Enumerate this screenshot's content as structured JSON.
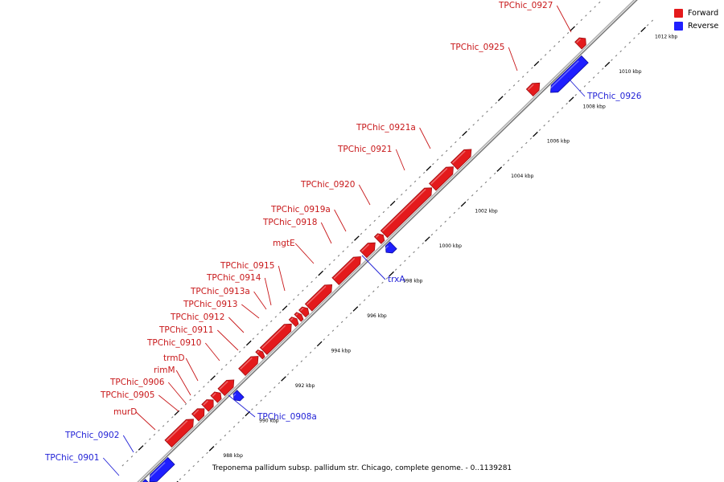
{
  "caption": "Treponema pallidum subsp. pallidum str. Chicago, complete genome. - 0..1139281",
  "legend": [
    {
      "label": "Forward",
      "color": "#e41a1c"
    },
    {
      "label": "Reverse",
      "color": "#1f1fff"
    }
  ],
  "colors": {
    "forward": "#e41a1c",
    "reverse": "#1f1fff",
    "axis": "#8c8c8c"
  },
  "scale": {
    "start_kbp": 986,
    "end_kbp": 1012,
    "major_kbp": 2,
    "unit": "kbp"
  },
  "ticks": [
    "988 kbp",
    "990 kbp",
    "992 kbp",
    "994 kbp",
    "996 kbp",
    "998 kbp",
    "1000 kbp",
    "1002 kbp",
    "1004 kbp",
    "1006 kbp",
    "1008 kbp",
    "1010 kbp",
    "1012 kbp"
  ],
  "genes": [
    {
      "label": "TPChic_0901",
      "strand": "reverse",
      "start": 985.3,
      "end": 986.5
    },
    {
      "label": "TPChic_0902",
      "strand": "reverse",
      "start": 985.0,
      "end": 985.25
    },
    {
      "label": "murD",
      "strand": "forward",
      "start": 986.9,
      "end": 988.3
    },
    {
      "label": "TPChic_0905",
      "strand": "forward",
      "start": 988.4,
      "end": 988.9
    },
    {
      "label": "TPChic_0906",
      "strand": "forward",
      "start": 988.95,
      "end": 989.4
    },
    {
      "label": "rimM",
      "strand": "forward",
      "start": 989.45,
      "end": 989.8
    },
    {
      "label": "trmD",
      "strand": "forward",
      "start": 989.85,
      "end": 990.55
    },
    {
      "label": "TPChic_0908a",
      "strand": "reverse",
      "start": 990.0,
      "end": 990.35
    },
    {
      "label": "TPChic_0910",
      "strand": "forward",
      "start": 991.0,
      "end": 991.9
    },
    {
      "label": "TPChic_0911",
      "strand": "forward",
      "start": 991.95,
      "end": 992.15
    },
    {
      "label": "TPChic_0912",
      "strand": "forward",
      "start": 992.2,
      "end": 993.75
    },
    {
      "label": "TPChic_0913",
      "strand": "forward",
      "start": 993.8,
      "end": 994.05
    },
    {
      "label": "TPChic_0913a",
      "strand": "forward",
      "start": 994.1,
      "end": 994.3
    },
    {
      "label": "TPChic_0914",
      "strand": "forward",
      "start": 994.35,
      "end": 994.65
    },
    {
      "label": "TPChic_0915",
      "strand": "forward",
      "start": 994.7,
      "end": 996.0
    },
    {
      "label": "mgtE",
      "strand": "forward",
      "start": 996.2,
      "end": 997.6
    },
    {
      "label": "TPChic_0918",
      "strand": "forward",
      "start": 997.75,
      "end": 998.4
    },
    {
      "label": "trxA",
      "strand": "reverse",
      "start": 998.45,
      "end": 998.85
    },
    {
      "label": "TPChic_0919a",
      "strand": "forward",
      "start": 998.55,
      "end": 998.85
    },
    {
      "label": "TPChic_0920",
      "strand": "forward",
      "start": 998.9,
      "end": 1001.55
    },
    {
      "label": "TPChic_0921",
      "strand": "forward",
      "start": 1001.6,
      "end": 1002.75
    },
    {
      "label": "TPChic_0921a",
      "strand": "forward",
      "start": 1002.8,
      "end": 1003.75
    },
    {
      "label": "TPChic_0925",
      "strand": "forward",
      "start": 1007.0,
      "end": 1007.55
    },
    {
      "label": "TPChic_0926",
      "strand": "reverse",
      "start": 1007.6,
      "end": 1009.5
    },
    {
      "label": "TPChic_0927",
      "strand": "forward",
      "start": 1009.7,
      "end": 1010.1
    }
  ]
}
